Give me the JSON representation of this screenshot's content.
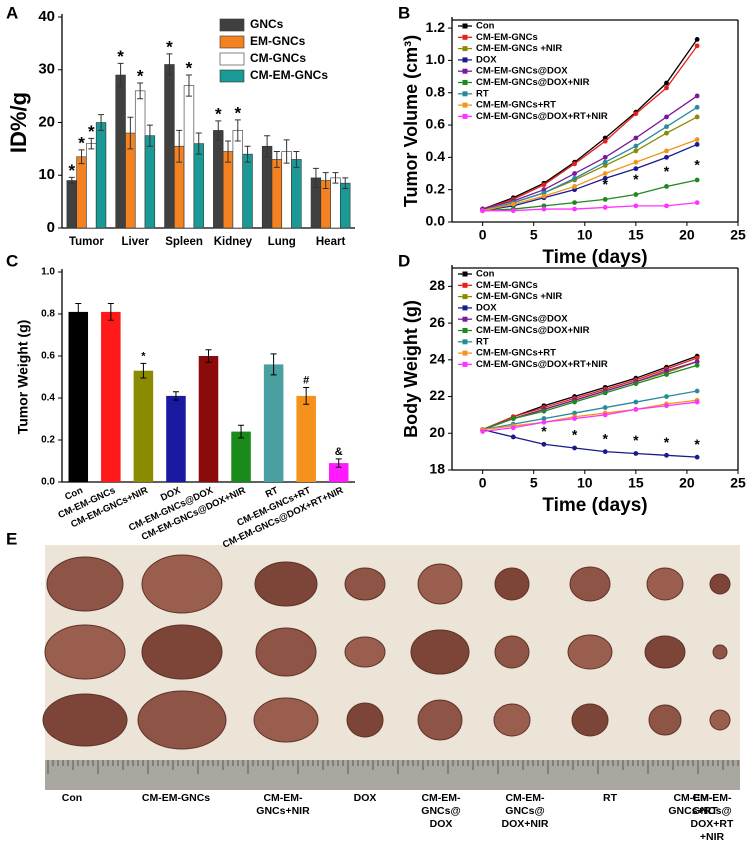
{
  "chart_data": [
    {
      "label": "A",
      "type": "bar",
      "categories": [
        "Tumor",
        "Liver",
        "Spleen",
        "Kidney",
        "Lung",
        "Heart"
      ],
      "series": [
        {
          "name": "GNCs",
          "color": "#404040",
          "values": [
            9,
            29,
            31,
            18.5,
            15.5,
            9.5
          ],
          "errors": [
            0.6,
            2.2,
            2,
            1.8,
            2,
            1.8
          ],
          "value_markers": [
            "*",
            "*",
            "*",
            "*",
            null,
            null
          ]
        },
        {
          "name": "EM-GNCs",
          "color": "#f58220",
          "values": [
            13.5,
            18,
            15.5,
            14.5,
            13,
            9
          ],
          "errors": [
            1.3,
            3,
            3,
            2,
            1.5,
            1.5
          ],
          "value_markers": [
            "*",
            null,
            null,
            null,
            null,
            null
          ]
        },
        {
          "name": "CM-GNCs",
          "color": "#ffffff",
          "values": [
            16,
            26,
            27,
            18.5,
            14.5,
            9.5
          ],
          "errors": [
            1,
            1.5,
            2,
            2,
            2.2,
            1
          ],
          "value_markers": [
            "*",
            "*",
            "*",
            "*",
            null,
            null
          ]
        },
        {
          "name": "CM-EM-GNCs",
          "color": "#1a9a96",
          "values": [
            20,
            17.5,
            16,
            14,
            13,
            8.5
          ],
          "errors": [
            1.5,
            2,
            2,
            1.5,
            1.5,
            1
          ],
          "value_markers": [
            null,
            null,
            null,
            null,
            null,
            null
          ]
        }
      ],
      "ylabel": "ID%/g",
      "ylim": [
        0,
        40
      ],
      "yticks": [
        0,
        10,
        20,
        30,
        40
      ],
      "legend": "upper right"
    },
    {
      "label": "B",
      "type": "line",
      "x": [
        0,
        3,
        6,
        9,
        12,
        15,
        18,
        21
      ],
      "xlim": [
        -3,
        25
      ],
      "xticks": [
        0,
        5,
        10,
        15,
        20,
        25
      ],
      "ylim": [
        0,
        1.25
      ],
      "yticks": [
        {
          "value": 0,
          "label": "0.0"
        },
        {
          "value": 0.2,
          "label": "0.2"
        },
        {
          "value": 0.4,
          "label": "0.4"
        },
        {
          "value": 0.6,
          "label": "0.6"
        },
        {
          "value": 0.8,
          "label": "0.8"
        },
        {
          "value": 1,
          "label": "1.0"
        },
        {
          "value": 1.2,
          "label": "1.2"
        }
      ],
      "xlabel": "Time (days)",
      "ylabel": "Tumor Volume (cm³)",
      "legend": "upper left",
      "frame": true,
      "series": [
        {
          "name": "Con",
          "color": "#000000",
          "values": [
            0.08,
            0.15,
            0.24,
            0.37,
            0.52,
            0.68,
            0.86,
            1.13
          ]
        },
        {
          "name": "CM-EM-GNCs",
          "color": "#e8201c",
          "values": [
            0.08,
            0.14,
            0.23,
            0.36,
            0.5,
            0.67,
            0.83,
            1.09
          ]
        },
        {
          "name": "CM-EM-GNCs +NIR",
          "color": "#8b8b00",
          "values": [
            0.07,
            0.12,
            0.18,
            0.26,
            0.35,
            0.44,
            0.55,
            0.65
          ]
        },
        {
          "name": "DOX",
          "color": "#1a1a8c",
          "values": [
            0.07,
            0.1,
            0.15,
            0.2,
            0.27,
            0.33,
            0.4,
            0.48
          ]
        },
        {
          "name": "CM-EM-GNCs@DOX",
          "color": "#7a1a9a",
          "values": [
            0.08,
            0.13,
            0.2,
            0.3,
            0.4,
            0.52,
            0.65,
            0.78
          ]
        },
        {
          "name": "CM-EM-GNCs@DOX+NIR",
          "color": "#1e8a1e",
          "values": [
            0.07,
            0.08,
            0.1,
            0.12,
            0.14,
            0.17,
            0.22,
            0.26
          ],
          "value_markers": [
            null,
            null,
            null,
            null,
            "*",
            "*",
            "*",
            "*"
          ]
        },
        {
          "name": "RT",
          "color": "#2a8a9a",
          "values": [
            0.07,
            0.12,
            0.18,
            0.27,
            0.37,
            0.47,
            0.59,
            0.71
          ]
        },
        {
          "name": "CM-EM-GNCs+RT",
          "color": "#f0961e",
          "values": [
            0.07,
            0.11,
            0.16,
            0.22,
            0.3,
            0.37,
            0.44,
            0.51
          ]
        },
        {
          "name": "CM-EM-GNCs@DOX+RT+NIR",
          "color": "#ff33ff",
          "values": [
            0.07,
            0.07,
            0.08,
            0.08,
            0.09,
            0.1,
            0.1,
            0.12
          ]
        }
      ]
    },
    {
      "label": "C",
      "type": "bar",
      "categories": [
        "Con",
        "CM-EM-GNCs",
        "CM-EM-GNCs+NIR",
        "DOX",
        "CM-EM-GNCs@DOX",
        "CM-EM-GNCs@DOX+NIR",
        "RT",
        "CM-EM-GNCs+RT",
        "CM-EM-GNCs@DOX+RT+NIR"
      ],
      "values": [
        0.81,
        0.81,
        0.53,
        0.41,
        0.6,
        0.24,
        0.56,
        0.41,
        0.09
      ],
      "errors": [
        0.04,
        0.04,
        0.035,
        0.02,
        0.03,
        0.03,
        0.05,
        0.04,
        0.02
      ],
      "value_markers": [
        null,
        null,
        "*",
        null,
        null,
        null,
        null,
        "#",
        "&"
      ],
      "colors": [
        "#000000",
        "#ff1a1a",
        "#8b8b00",
        "#1a1aa0",
        "#8b0a0a",
        "#1a8a1a",
        "#4aa0a0",
        "#f5921e",
        "#ff1aff"
      ],
      "ylabel": "Tumor Weight (g)",
      "ylim": [
        0,
        1
      ],
      "yticks": [
        {
          "value": 0,
          "label": "0.0"
        },
        {
          "value": 0.2,
          "label": "0.2"
        },
        {
          "value": 0.4,
          "label": "0.4"
        },
        {
          "value": 0.6,
          "label": "0.6"
        },
        {
          "value": 0.8,
          "label": "0.8"
        },
        {
          "value": 1,
          "label": "1.0"
        }
      ],
      "xtick_rotation": -25
    },
    {
      "label": "D",
      "type": "line",
      "x": [
        0,
        3,
        6,
        9,
        12,
        15,
        18,
        21
      ],
      "xlim": [
        -3,
        25
      ],
      "xticks": [
        0,
        5,
        10,
        15,
        20,
        25
      ],
      "ylim": [
        18,
        29
      ],
      "yticks": [
        18,
        20,
        22,
        24,
        26,
        28
      ],
      "xlabel": "Time (days)",
      "ylabel": "Body Weight (g)",
      "legend": "upper left",
      "frame": true,
      "series": [
        {
          "name": "Con",
          "color": "#000000",
          "values": [
            20.2,
            20.9,
            21.5,
            22,
            22.5,
            23,
            23.6,
            24.2
          ]
        },
        {
          "name": "CM-EM-GNCs",
          "color": "#e8201c",
          "values": [
            20.2,
            20.9,
            21.4,
            21.9,
            22.4,
            22.9,
            23.5,
            24.1
          ]
        },
        {
          "name": "CM-EM-GNCs +NIR",
          "color": "#8b8b00",
          "values": [
            20.2,
            20.8,
            21.3,
            21.8,
            22.3,
            22.8,
            23.3,
            23.9
          ]
        },
        {
          "name": "DOX",
          "color": "#1a1a8c",
          "values": [
            20.2,
            19.8,
            19.4,
            19.2,
            19,
            18.9,
            18.8,
            18.7
          ],
          "value_markers": [
            null,
            null,
            "*",
            "*",
            "*",
            "*",
            "*",
            "*"
          ]
        },
        {
          "name": "CM-EM-GNCs@DOX",
          "color": "#7a1a9a",
          "values": [
            20.2,
            20.8,
            21.3,
            21.8,
            22.3,
            22.8,
            23.4,
            23.9
          ]
        },
        {
          "name": "CM-EM-GNCs@DOX+NIR",
          "color": "#1e8a1e",
          "values": [
            20.2,
            20.8,
            21.2,
            21.7,
            22.2,
            22.7,
            23.2,
            23.7
          ]
        },
        {
          "name": "RT",
          "color": "#2a8a9a",
          "values": [
            20.2,
            20.5,
            20.8,
            21.1,
            21.4,
            21.7,
            22,
            22.3
          ]
        },
        {
          "name": "CM-EM-GNCs+RT",
          "color": "#f0961e",
          "values": [
            20.2,
            20.4,
            20.6,
            20.9,
            21.1,
            21.3,
            21.6,
            21.8
          ]
        },
        {
          "name": "CM-EM-GNCs@DOX+RT+NIR",
          "color": "#ff33ff",
          "values": [
            20.1,
            20.3,
            20.6,
            20.8,
            21,
            21.3,
            21.5,
            21.7
          ]
        }
      ]
    }
  ],
  "panel_e": {
    "label": "E",
    "groups": [
      [
        "Con"
      ],
      [
        "CM-EM-GNCs"
      ],
      [
        "CM-EM-",
        "GNCs+NIR"
      ],
      [
        "DOX"
      ],
      [
        "CM-EM-",
        "GNCs@",
        "DOX"
      ],
      [
        "CM-EM-",
        "GNCs@",
        "DOX+NIR"
      ],
      [
        "RT"
      ],
      [
        "CM-EM-",
        "GNCs+RT"
      ],
      [
        "CM-EM-",
        "GNCs@",
        "DOX+RT",
        "+NIR"
      ]
    ]
  }
}
